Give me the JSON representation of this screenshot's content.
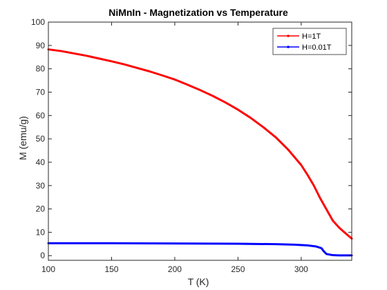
{
  "chart_data": {
    "type": "line",
    "title": "NiMnIn - Magnetization vs Temperature",
    "xlabel": "T (K)",
    "ylabel": "M (emu/g)",
    "xlim": [
      100,
      340
    ],
    "ylim": [
      -2,
      100
    ],
    "xticks": [
      100,
      150,
      200,
      250,
      300
    ],
    "yticks": [
      0,
      10,
      20,
      30,
      40,
      50,
      60,
      70,
      80,
      90,
      100
    ],
    "grid": false,
    "legend_position": "top-right",
    "series": [
      {
        "name": "H=1T",
        "color": "#ff0000",
        "x": [
          100,
          110,
          120,
          130,
          140,
          150,
          160,
          170,
          180,
          190,
          200,
          210,
          220,
          230,
          240,
          250,
          260,
          270,
          280,
          290,
          300,
          305,
          310,
          315,
          320,
          325,
          330,
          335,
          340
        ],
        "y": [
          88.3,
          87.6,
          86.6,
          85.6,
          84.4,
          83.2,
          81.9,
          80.4,
          78.9,
          77.2,
          75.4,
          73.2,
          70.9,
          68.4,
          65.6,
          62.5,
          59.0,
          55.0,
          50.6,
          45.2,
          38.8,
          34.6,
          30.0,
          24.6,
          19.8,
          15.0,
          12.0,
          9.6,
          7.3
        ]
      },
      {
        "name": "H=0.01T",
        "color": "#0000ff",
        "x": [
          100,
          150,
          200,
          250,
          280,
          295,
          305,
          312,
          316,
          318,
          320,
          325,
          330,
          335,
          340
        ],
        "y": [
          5.3,
          5.3,
          5.2,
          5.1,
          4.9,
          4.7,
          4.4,
          3.9,
          3.2,
          1.8,
          0.7,
          0.2,
          0.1,
          0.1,
          0.1
        ]
      }
    ]
  }
}
